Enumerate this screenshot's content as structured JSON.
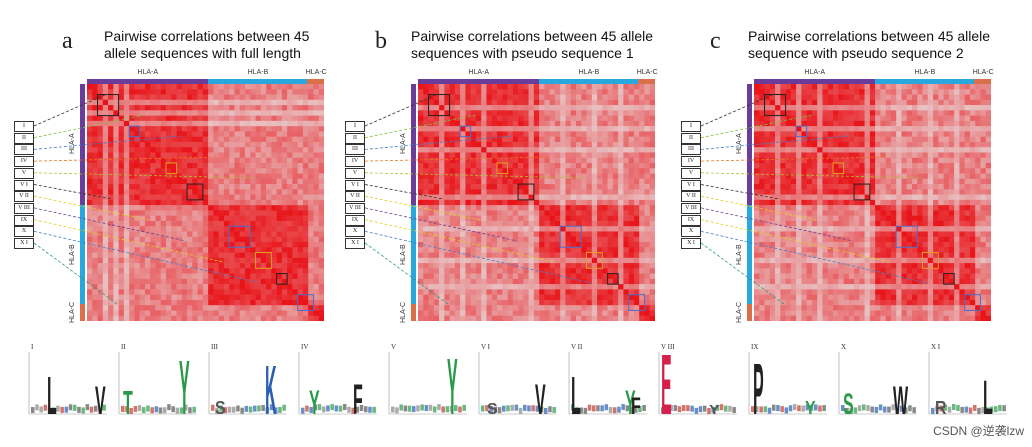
{
  "panels": [
    {
      "letter": "a",
      "title_line1": "Pairwise correlations between 45",
      "title_line2": "allele sequences with full length"
    },
    {
      "letter": "b",
      "title_line1": "Pairwise correlations between 45 allele",
      "title_line2": "sequences with pseudo sequence 1"
    },
    {
      "letter": "c",
      "title_line1": "Pairwise correlations between 45 allele",
      "title_line2": "sequence with pseudo sequence 2"
    }
  ],
  "gene_labels": {
    "hla_a": "HLA-A",
    "hla_b": "HLA-B",
    "hla_c": "HLA-C"
  },
  "roman_labels": [
    "I",
    "II",
    "III",
    "IV",
    "V",
    "V I",
    "V II",
    "V III",
    "IX",
    "X",
    "X I"
  ],
  "logo_labels": [
    "I",
    "II",
    "III",
    "IV",
    "V",
    "V I",
    "V II",
    "V III",
    "IX",
    "X",
    "X I"
  ],
  "colors": {
    "hla_a": "#6a3d9a",
    "hla_b": "#29a8df",
    "hla_c": "#d9704a",
    "heat_high": "#e8141b",
    "heat_low": "#fde0e0"
  },
  "watermark": "CSDN @逆袭lzw"
}
